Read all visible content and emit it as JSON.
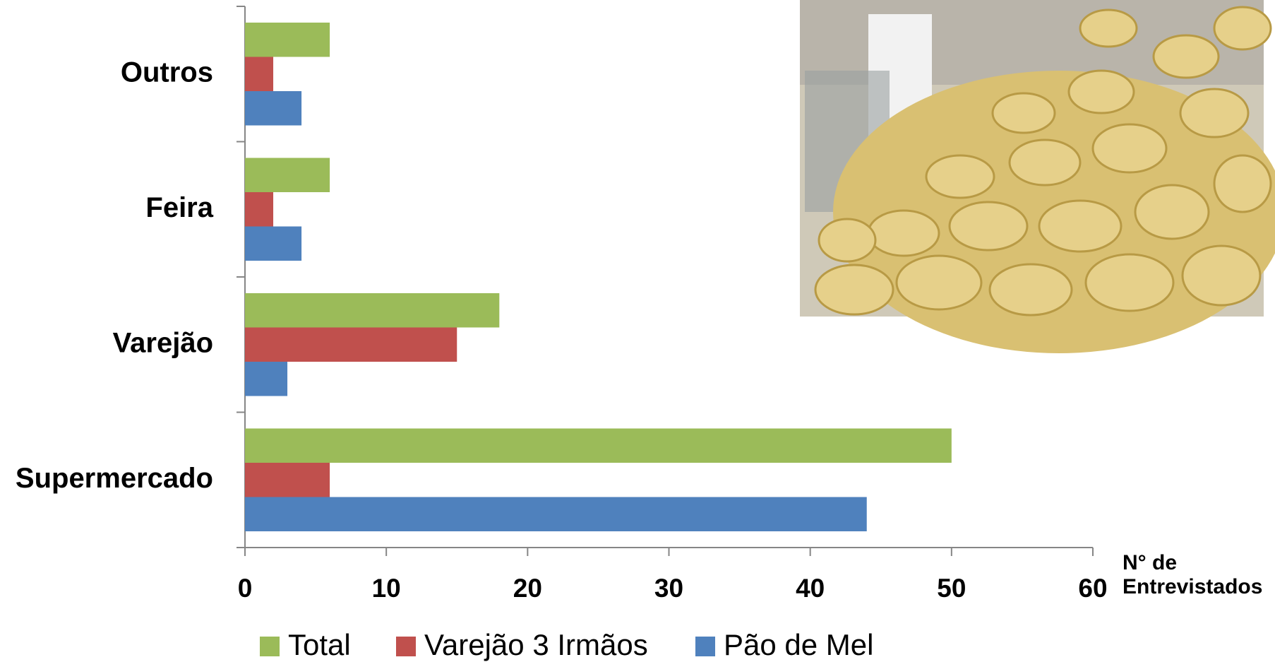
{
  "chart_data": {
    "type": "bar",
    "orientation": "horizontal",
    "categories": [
      "Supermercado",
      "Varejão",
      "Feira",
      "Outros"
    ],
    "series": [
      {
        "name": "Total",
        "color": "#9bbb59",
        "values": [
          50,
          18,
          6,
          6
        ]
      },
      {
        "name": "Varejão 3 Irmãos",
        "color": "#c0504d",
        "values": [
          6,
          15,
          2,
          2
        ]
      },
      {
        "name": "Pão de Mel",
        "color": "#4f81bd",
        "values": [
          44,
          3,
          4,
          4
        ]
      }
    ],
    "x_label": "N° de Entrevistados",
    "xlim": [
      0,
      60
    ],
    "xticks": [
      0,
      10,
      20,
      30,
      40,
      50,
      60
    ],
    "grid": false,
    "legend": "bottom"
  }
}
